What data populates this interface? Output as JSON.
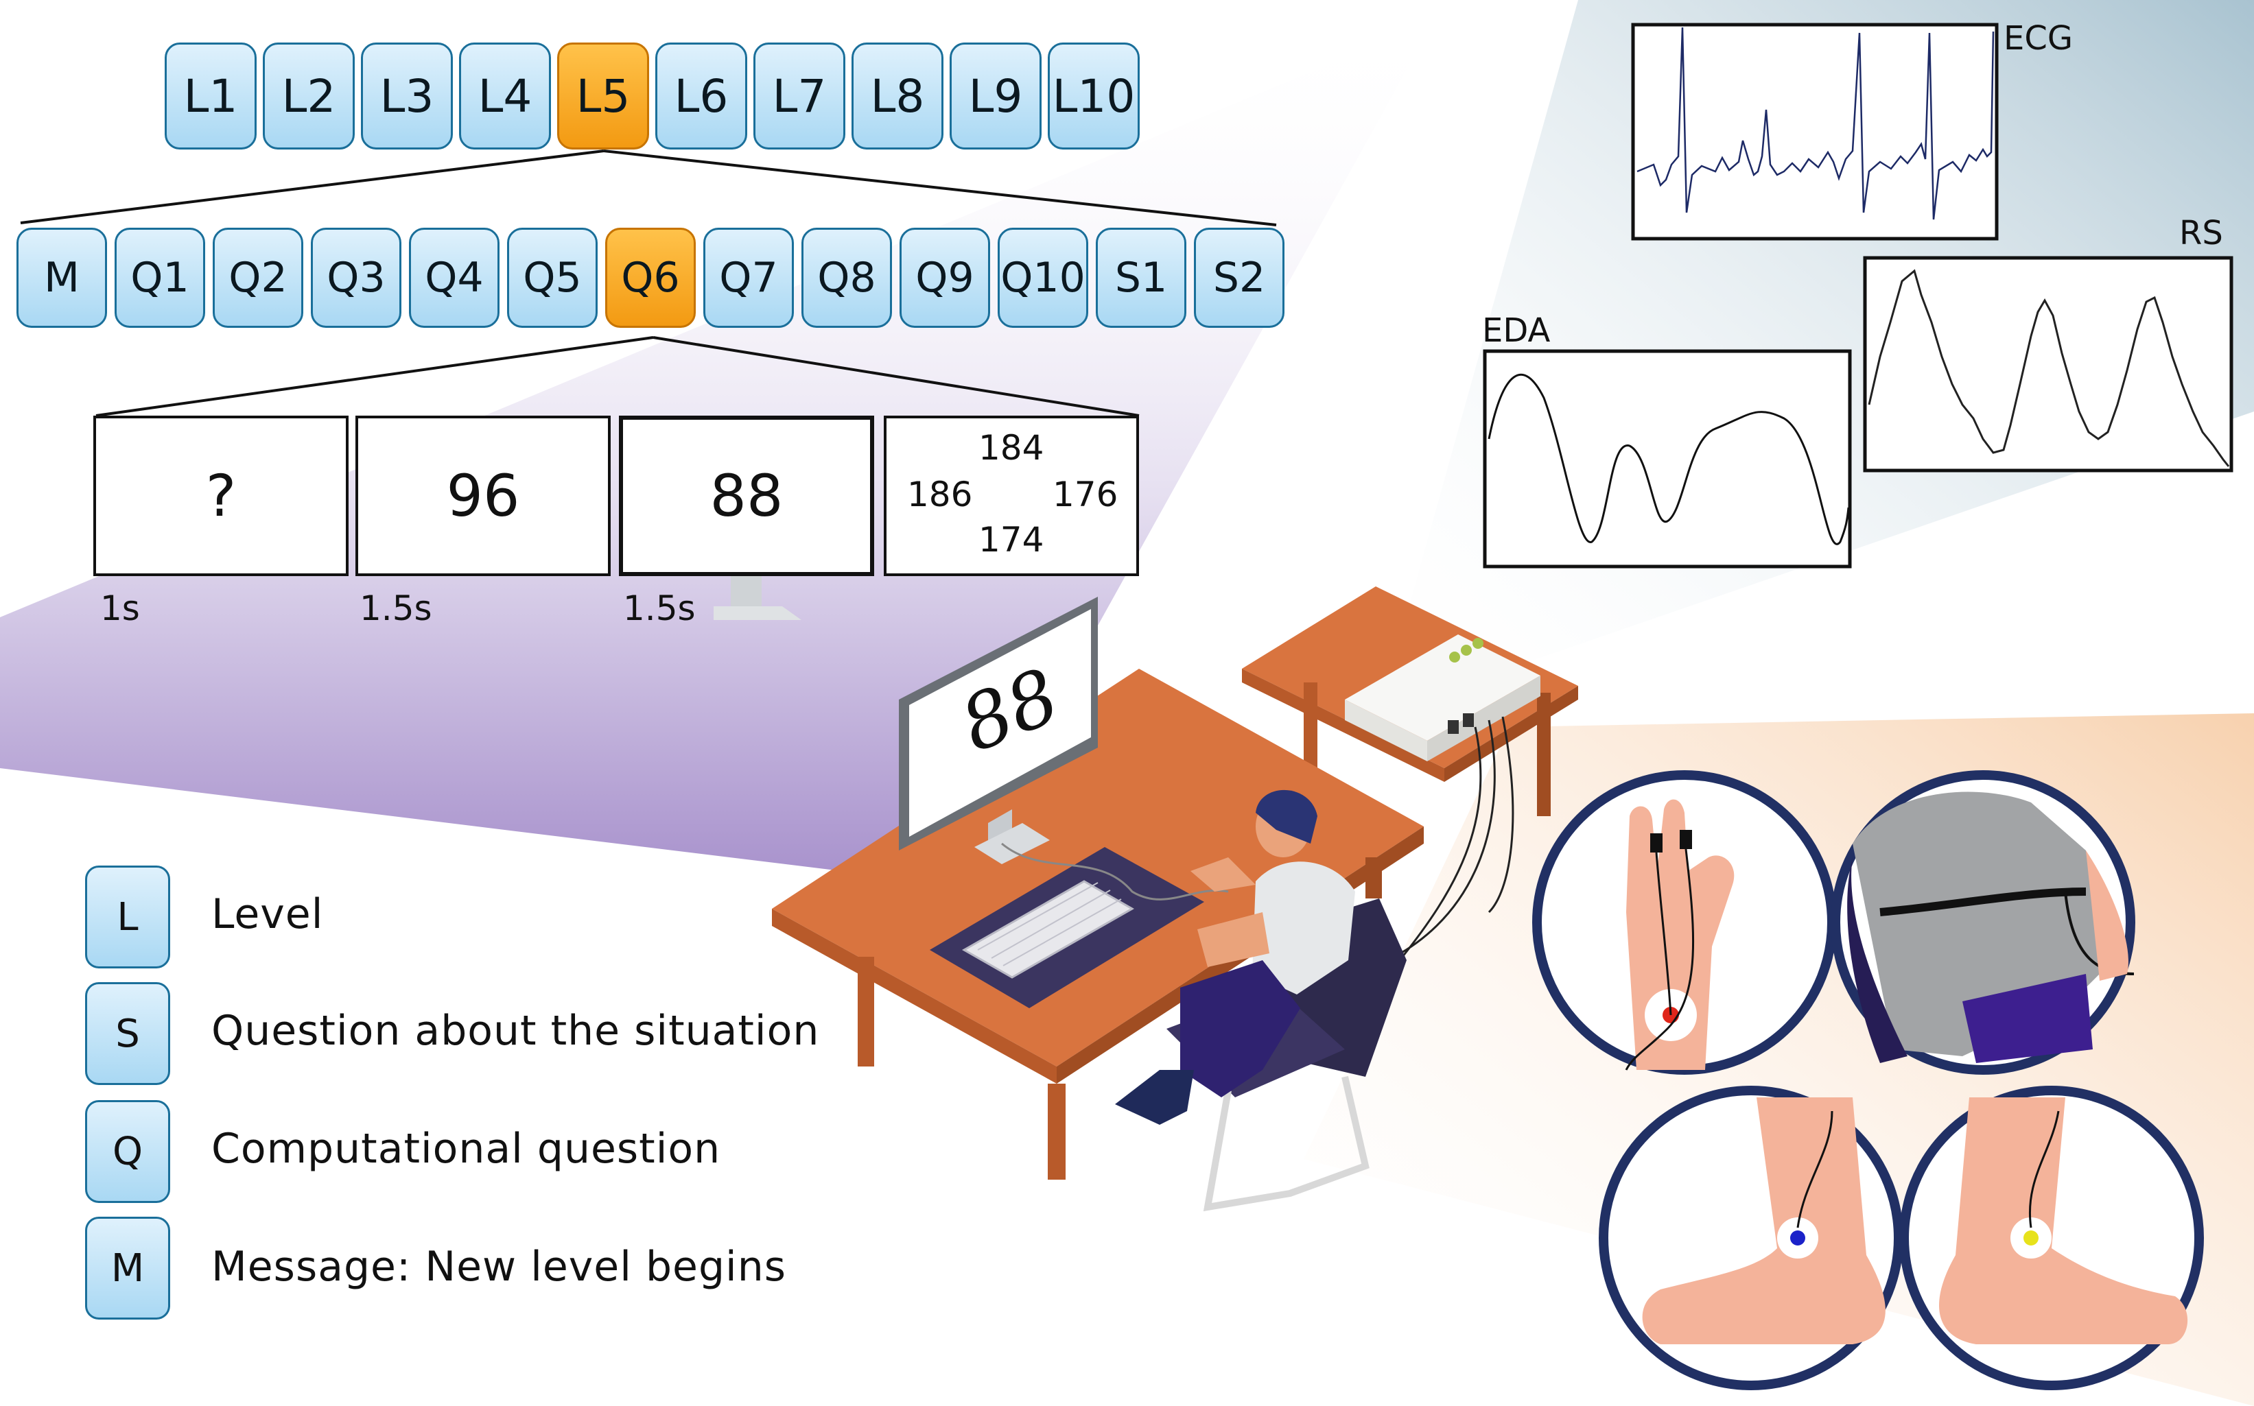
{
  "levels": [
    "L1",
    "L2",
    "L3",
    "L4",
    "L5",
    "L6",
    "L7",
    "L8",
    "L9",
    "L10"
  ],
  "active_level": "L5",
  "questions": [
    "M",
    "Q1",
    "Q2",
    "Q3",
    "Q4",
    "Q5",
    "Q6",
    "Q7",
    "Q8",
    "Q9",
    "Q10",
    "S1",
    "S2"
  ],
  "active_question": "Q6",
  "sequence": {
    "panel1": "?",
    "panel2": "96",
    "panel3": "88",
    "answers": {
      "top": "184",
      "left": "186",
      "right": "176",
      "bottom": "174"
    },
    "timings": [
      "1s",
      "1.5s",
      "1.5s"
    ]
  },
  "monitor_text": "88",
  "signals": {
    "ecg": "ECG",
    "rs": "RS",
    "eda": "EDA"
  },
  "legend": [
    {
      "key": "L",
      "text": "Level"
    },
    {
      "key": "S",
      "text": "Question about the situation"
    },
    {
      "key": "Q",
      "text": "Computational question"
    },
    {
      "key": "M",
      "text": "Message: New level begins"
    }
  ],
  "colors": {
    "tile": "#bfe3f8",
    "tile_border": "#1a6f9a",
    "active": "#f7a21b",
    "desk": "#d9743f",
    "purple": "#a58fca"
  }
}
